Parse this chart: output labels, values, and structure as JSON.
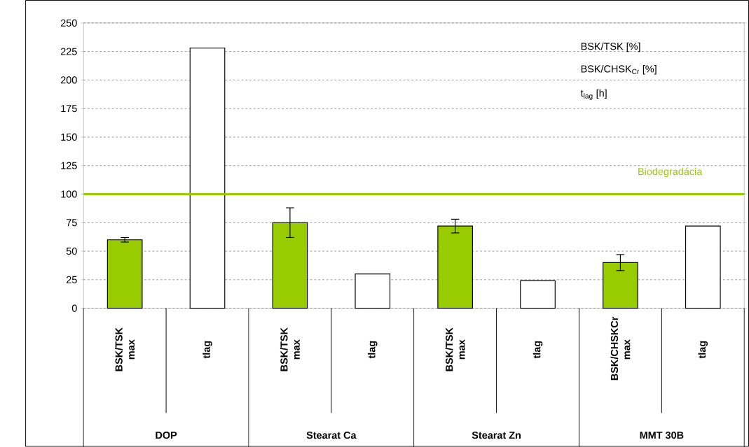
{
  "chart_data": {
    "type": "bar",
    "categories": [
      "BSK/TSK max",
      "tlag",
      "BSK/TSK max",
      "tlag",
      "BSK/TSK max",
      "tlag",
      "BSK/CHSKCr max",
      "tlag"
    ],
    "values": [
      60,
      228,
      75,
      30,
      72,
      24,
      40,
      72
    ],
    "colors": [
      "#99cc00",
      "#ffffff",
      "#99cc00",
      "#ffffff",
      "#99cc00",
      "#ffffff",
      "#99cc00",
      "#ffffff"
    ],
    "errors": [
      2,
      null,
      13,
      null,
      6,
      null,
      7,
      null
    ],
    "ylim": [
      0,
      250
    ],
    "yticks": [
      0,
      25,
      50,
      75,
      100,
      125,
      150,
      175,
      200,
      225,
      250
    ],
    "grid": "y",
    "ref_lines": [
      {
        "axis": "y",
        "value": 100,
        "label": "Biodegradácia",
        "color": "#99cc00"
      }
    ],
    "annotations": [
      "BSK/TSK [%]",
      "BSK/CHSK$_{Cr}$ [%]",
      "t$_{lag}$ [h]",
      "DOP",
      "Stearat Ca",
      "Stearat Zn",
      "MMT 30B"
    ]
  }
}
